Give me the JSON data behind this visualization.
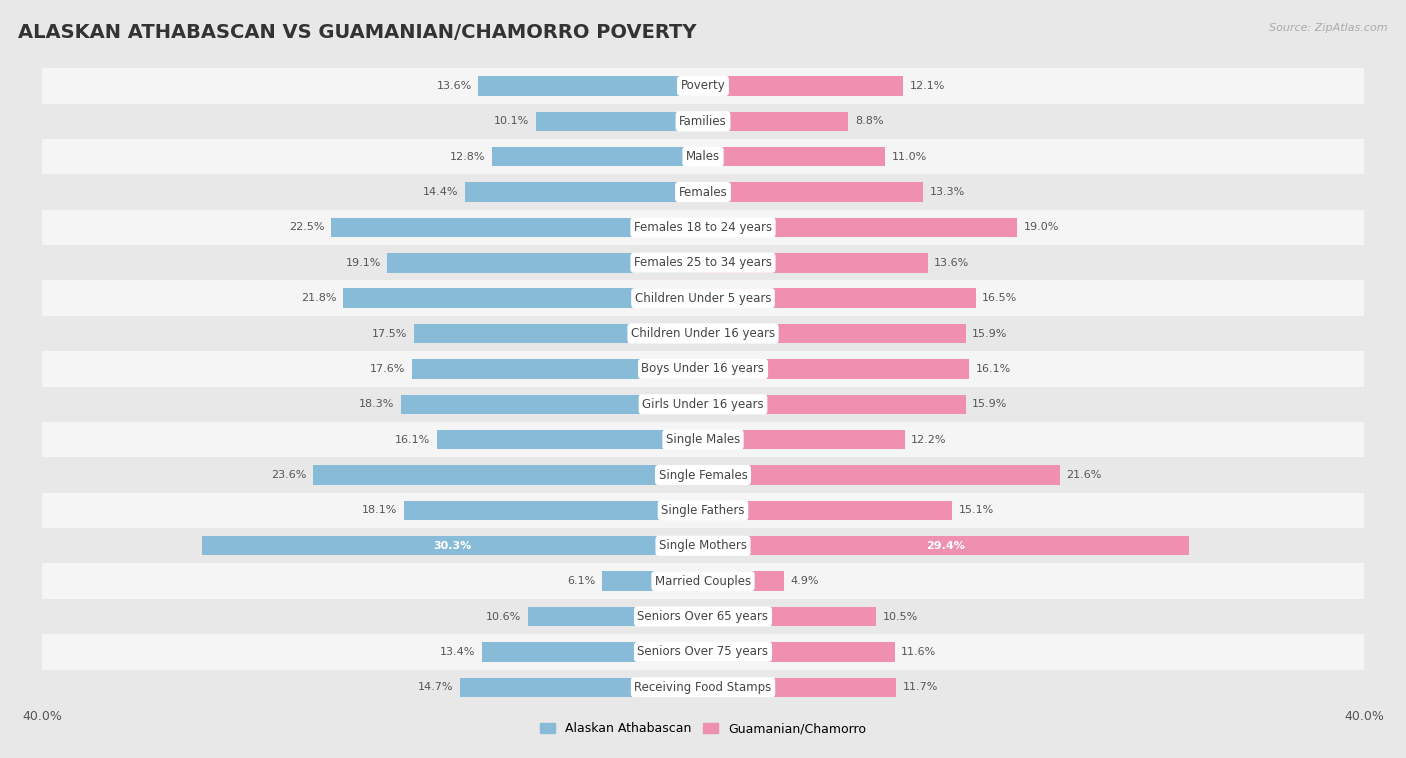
{
  "title": "ALASKAN ATHABASCAN VS GUAMANIAN/CHAMORRO POVERTY",
  "source": "Source: ZipAtlas.com",
  "categories": [
    "Poverty",
    "Families",
    "Males",
    "Females",
    "Females 18 to 24 years",
    "Females 25 to 34 years",
    "Children Under 5 years",
    "Children Under 16 years",
    "Boys Under 16 years",
    "Girls Under 16 years",
    "Single Males",
    "Single Females",
    "Single Fathers",
    "Single Mothers",
    "Married Couples",
    "Seniors Over 65 years",
    "Seniors Over 75 years",
    "Receiving Food Stamps"
  ],
  "left_values": [
    13.6,
    10.1,
    12.8,
    14.4,
    22.5,
    19.1,
    21.8,
    17.5,
    17.6,
    18.3,
    16.1,
    23.6,
    18.1,
    30.3,
    6.1,
    10.6,
    13.4,
    14.7
  ],
  "right_values": [
    12.1,
    8.8,
    11.0,
    13.3,
    19.0,
    13.6,
    16.5,
    15.9,
    16.1,
    15.9,
    12.2,
    21.6,
    15.1,
    29.4,
    4.9,
    10.5,
    11.6,
    11.7
  ],
  "left_color": "#88bbd8",
  "right_color": "#f090b0",
  "left_label": "Alaskan Athabascan",
  "right_label": "Guamanian/Chamorro",
  "xlim": 40.0,
  "bg_color": "#e8e8e8",
  "row_bg_even": "#f5f5f5",
  "row_bg_odd": "#e8e8e8",
  "label_bg": "#ffffff",
  "title_fontsize": 14,
  "cat_fontsize": 8.5,
  "value_fontsize": 8,
  "bar_height": 0.55,
  "single_mothers_label_color": "#ffffff",
  "single_mothers_idx": 13
}
